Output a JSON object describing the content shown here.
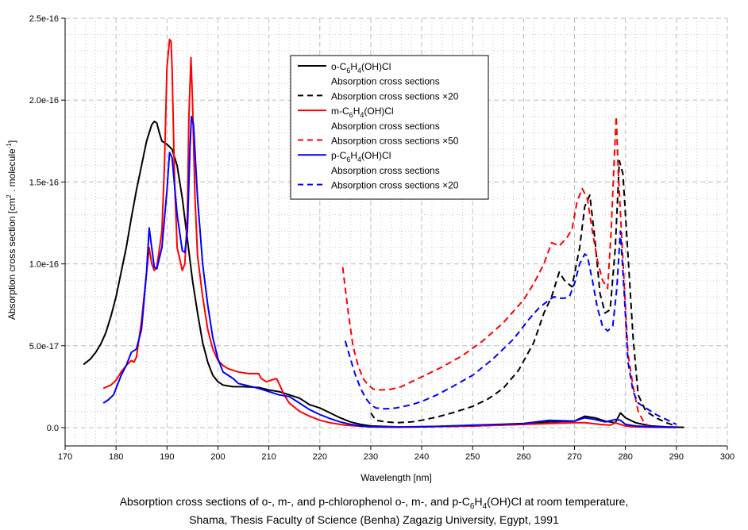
{
  "chart_data": {
    "type": "line",
    "xlabel": "Wavelength [nm]",
    "ylabel_parts": {
      "prefix": "Absorption cross section [cm",
      "sup1": "2",
      "mid": " . molecule",
      "sup2": "-1",
      "suffix": "]"
    },
    "xlim": [
      170,
      300
    ],
    "ylim": [
      0,
      2.5e-16
    ],
    "x_ticks": [
      170,
      180,
      190,
      200,
      210,
      220,
      230,
      240,
      250,
      260,
      270,
      280,
      290,
      300
    ],
    "y_ticks": [
      0,
      5e-17,
      1e-16,
      1.5e-16,
      2e-16,
      2.5e-16
    ],
    "y_tick_labels": [
      "0.0",
      "5.0e-17",
      "1.0e-16",
      "1.5e-16",
      "2.0e-16",
      "2.5e-16"
    ],
    "grid": true,
    "legend_position": "top-center",
    "legend": [
      {
        "kind": "compound",
        "prefix": "o-C",
        "sub1": "6",
        "mid": "H",
        "sub2": "4",
        "suffix": "(OH)Cl",
        "color": "#000000",
        "dash": false
      },
      {
        "kind": "text",
        "label": "Absorption cross sections"
      },
      {
        "kind": "line",
        "label": "Absorption cross sections ×20",
        "color": "#000000",
        "dash": true
      },
      {
        "kind": "compound",
        "prefix": "m-C",
        "sub1": "6",
        "mid": "H",
        "sub2": "4",
        "suffix": "(OH)Cl",
        "color": "#ff0000",
        "dash": false
      },
      {
        "kind": "text",
        "label": "Absorption cross sections"
      },
      {
        "kind": "line",
        "label": "Absorption cross sections ×50",
        "color": "#ff0000",
        "dash": true
      },
      {
        "kind": "compound",
        "prefix": "p-C",
        "sub1": "6",
        "mid": "H",
        "sub2": "4",
        "suffix": "(OH)Cl",
        "color": "#0000ff",
        "dash": false
      },
      {
        "kind": "text",
        "label": "Absorption cross sections"
      },
      {
        "kind": "line",
        "label": "Absorption cross sections ×20",
        "color": "#0000ff",
        "dash": true
      }
    ],
    "y_unit": 1e-16,
    "series": [
      {
        "name": "o-C6H4(OH)Cl Absorption cross sections",
        "color": "#000000",
        "dash": false,
        "x": [
          173.6,
          175,
          176,
          177,
          178,
          179,
          180,
          181,
          182,
          183,
          184,
          185,
          186,
          187,
          187.5,
          188,
          188.5,
          189,
          190,
          191,
          192,
          193,
          194,
          195,
          196,
          197,
          198,
          199,
          200,
          201,
          202,
          203,
          205,
          208,
          210,
          212,
          214,
          216,
          218,
          220,
          222,
          224,
          226,
          228,
          230,
          235,
          240,
          250,
          260,
          265,
          270,
          272,
          274,
          276,
          278,
          279,
          280,
          282,
          285,
          288,
          290,
          291.5
        ],
        "y": [
          0.385,
          0.42,
          0.46,
          0.51,
          0.58,
          0.68,
          0.8,
          0.95,
          1.1,
          1.28,
          1.45,
          1.6,
          1.75,
          1.85,
          1.87,
          1.86,
          1.8,
          1.75,
          1.73,
          1.7,
          1.6,
          1.4,
          1.15,
          0.9,
          0.7,
          0.52,
          0.4,
          0.32,
          0.28,
          0.26,
          0.255,
          0.25,
          0.25,
          0.245,
          0.23,
          0.22,
          0.2,
          0.18,
          0.14,
          0.12,
          0.09,
          0.06,
          0.035,
          0.02,
          0.01,
          0.005,
          0.006,
          0.01,
          0.02,
          0.035,
          0.04,
          0.07,
          0.06,
          0.04,
          0.03,
          0.09,
          0.06,
          0.03,
          0.01,
          0.005,
          0.003,
          0.002
        ]
      },
      {
        "name": "o-C6H4(OH)Cl Absorption cross sections ×20",
        "color": "#000000",
        "dash": true,
        "x": [
          230,
          231,
          233,
          235,
          238,
          240,
          243,
          246,
          250,
          253,
          256,
          259,
          262,
          264,
          265.5,
          267,
          268,
          269.5,
          271,
          272,
          273,
          274,
          275,
          276,
          277,
          278,
          278.8,
          279.5,
          280.5,
          281.5,
          282.5,
          284,
          286,
          288,
          290
        ],
        "y": [
          0.09,
          0.045,
          0.035,
          0.03,
          0.035,
          0.045,
          0.065,
          0.09,
          0.13,
          0.175,
          0.24,
          0.35,
          0.52,
          0.7,
          0.8,
          0.95,
          0.9,
          0.86,
          1.1,
          1.35,
          1.42,
          1.15,
          0.82,
          0.7,
          0.72,
          1.1,
          1.63,
          1.55,
          1.05,
          0.55,
          0.2,
          0.1,
          0.06,
          0.03,
          0.01
        ]
      },
      {
        "name": "m-C6H4(OH)Cl Absorption cross sections",
        "color": "#ff0000",
        "dash": false,
        "x": [
          177.5,
          179,
          180,
          181,
          182,
          183,
          183.5,
          184,
          185,
          186,
          186.5,
          187,
          187.5,
          188,
          189,
          189.5,
          190,
          190.5,
          190.8,
          191,
          191.5,
          192,
          193,
          193.5,
          194,
          194.3,
          194.7,
          195,
          195.5,
          196,
          197,
          198,
          199,
          200,
          201,
          202,
          204,
          206,
          208,
          208.5,
          209.5,
          210.5,
          211.5,
          212,
          213,
          214,
          216,
          218,
          220,
          222,
          225,
          230,
          240,
          250,
          260,
          270,
          272,
          275,
          277,
          278,
          279,
          280,
          282,
          285,
          288,
          290
        ],
        "y": [
          0.24,
          0.26,
          0.29,
          0.34,
          0.38,
          0.41,
          0.4,
          0.43,
          0.65,
          0.95,
          1.1,
          1.0,
          0.96,
          0.98,
          1.2,
          1.6,
          2.2,
          2.37,
          2.36,
          2.2,
          1.5,
          1.1,
          0.96,
          1.0,
          1.3,
          1.9,
          2.26,
          2.0,
          1.4,
          1.05,
          0.8,
          0.6,
          0.48,
          0.41,
          0.38,
          0.36,
          0.34,
          0.33,
          0.33,
          0.3,
          0.28,
          0.29,
          0.3,
          0.27,
          0.2,
          0.15,
          0.1,
          0.07,
          0.045,
          0.03,
          0.015,
          0.005,
          0.005,
          0.01,
          0.02,
          0.03,
          0.03,
          0.02,
          0.015,
          0.03,
          0.02,
          0.01,
          0.005,
          0.003,
          0.002,
          0.001
        ]
      },
      {
        "name": "m-C6H4(OH)Cl Absorption cross sections ×50",
        "color": "#ff0000",
        "dash": true,
        "x": [
          224.5,
          225.5,
          226.5,
          227.5,
          228.5,
          229.5,
          230.5,
          232,
          234,
          236,
          238,
          240,
          244,
          248,
          252,
          256,
          260,
          262,
          264,
          265.5,
          267,
          268.5,
          269.5,
          270.5,
          271.5,
          272.5,
          273.5,
          274.5,
          275.5,
          276.5,
          277.2,
          277.8,
          278.2,
          278.6,
          279.2,
          279.8,
          280.5,
          281.5,
          282.5,
          283.5,
          284.5
        ],
        "y": [
          0.98,
          0.72,
          0.5,
          0.38,
          0.3,
          0.26,
          0.235,
          0.23,
          0.235,
          0.25,
          0.28,
          0.31,
          0.37,
          0.44,
          0.53,
          0.64,
          0.78,
          0.88,
          1.0,
          1.13,
          1.11,
          1.16,
          1.21,
          1.38,
          1.46,
          1.4,
          1.2,
          1.02,
          0.9,
          0.85,
          1.2,
          1.65,
          1.9,
          1.55,
          1.2,
          0.85,
          0.45,
          0.25,
          0.1,
          0.04,
          0.01
        ]
      },
      {
        "name": "p-C6H4(OH)Cl Absorption cross sections",
        "color": "#0000ff",
        "dash": false,
        "x": [
          177.5,
          178.5,
          179.5,
          180.5,
          181,
          182,
          183,
          184,
          185,
          186,
          186.5,
          187,
          187.5,
          188,
          189,
          190,
          190.5,
          191,
          192,
          193,
          193.5,
          194,
          194.5,
          194.8,
          195.2,
          196,
          197,
          198,
          199,
          200,
          201,
          202,
          203,
          204,
          206,
          208,
          210,
          212,
          214,
          216,
          218,
          220,
          222,
          224,
          226,
          228,
          230,
          235,
          240,
          250,
          260,
          265,
          270,
          272,
          274,
          276,
          278,
          279,
          280,
          282,
          285,
          290
        ],
        "y": [
          0.15,
          0.17,
          0.2,
          0.28,
          0.32,
          0.38,
          0.46,
          0.48,
          0.6,
          0.95,
          1.22,
          1.1,
          0.98,
          0.97,
          1.1,
          1.45,
          1.68,
          1.65,
          1.3,
          1.08,
          1.07,
          1.2,
          1.7,
          1.9,
          1.85,
          1.4,
          1.0,
          0.75,
          0.55,
          0.42,
          0.34,
          0.32,
          0.3,
          0.27,
          0.255,
          0.24,
          0.22,
          0.2,
          0.19,
          0.15,
          0.11,
          0.08,
          0.055,
          0.035,
          0.02,
          0.01,
          0.005,
          0.003,
          0.005,
          0.015,
          0.025,
          0.045,
          0.04,
          0.06,
          0.05,
          0.035,
          0.05,
          0.045,
          0.02,
          0.01,
          0.005,
          0.002
        ]
      },
      {
        "name": "p-C6H4(OH)Cl Absorption cross sections ×20",
        "color": "#0000ff",
        "dash": true,
        "x": [
          225,
          226,
          227,
          228,
          229,
          230,
          231,
          233,
          235,
          238,
          240,
          243,
          246,
          250,
          254,
          258,
          261,
          263,
          265,
          266,
          267,
          268,
          269,
          270,
          271,
          272,
          272.5,
          273.5,
          274.5,
          275.5,
          276.5,
          277.5,
          278.3,
          279,
          279.8,
          280.5,
          281.5,
          282.5,
          284,
          286,
          288,
          290
        ],
        "y": [
          0.53,
          0.42,
          0.32,
          0.24,
          0.18,
          0.14,
          0.12,
          0.115,
          0.12,
          0.14,
          0.16,
          0.2,
          0.25,
          0.32,
          0.42,
          0.54,
          0.66,
          0.73,
          0.78,
          0.8,
          0.79,
          0.79,
          0.8,
          0.88,
          1.0,
          1.06,
          1.05,
          0.9,
          0.73,
          0.62,
          0.59,
          0.62,
          0.85,
          1.2,
          0.8,
          0.4,
          0.22,
          0.15,
          0.12,
          0.08,
          0.05,
          0.02
        ]
      }
    ]
  },
  "caption": {
    "line1_prefix": "Absorption cross sections of o-, m-, and p-chlorophenol o-, m-, and p-C",
    "line1_sub1": "6",
    "line1_mid": "H",
    "line1_sub2": "4",
    "line1_suffix": "(OH)Cl at room temperature,",
    "line2": "Shama, Thesis Faculty of Science (Benha) Zagazig University, Egypt, 1991"
  }
}
